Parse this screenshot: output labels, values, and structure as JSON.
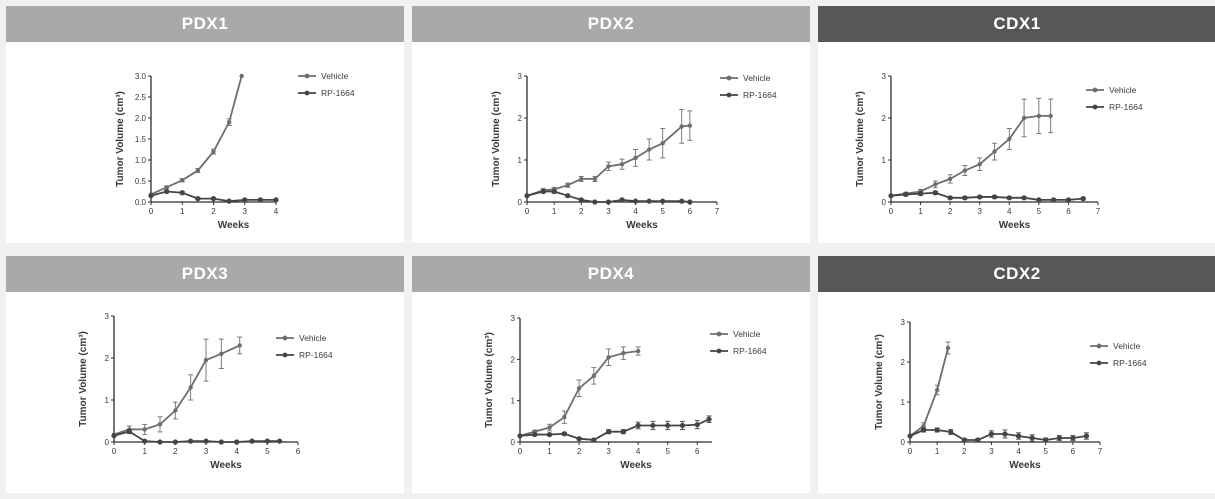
{
  "colors": {
    "header_pdx": "#a9a9a9",
    "header_cdx": "#575757",
    "vehicle_line": "#6e6e6e",
    "rp1664_line": "#454545",
    "axis": "#2e2e2e"
  },
  "chart_data": [
    {
      "type": "line",
      "title": "PDX1",
      "header_style": "pdx",
      "xlabel": "Weeks",
      "ylabel": "Tumor Volume (cm³)",
      "xlim": [
        0,
        4
      ],
      "ylim": [
        0,
        3
      ],
      "xticks": [
        "0",
        "1",
        "2",
        "3",
        "4"
      ],
      "yticks": [
        "0.0",
        "0.5",
        "1.0",
        "1.5",
        "2.0",
        "2.5",
        "3.0"
      ],
      "series": [
        {
          "name": "Vehicle",
          "x": [
            0,
            0.5,
            1,
            1.5,
            2,
            2.5,
            2.9
          ],
          "y": [
            0.18,
            0.35,
            0.52,
            0.75,
            1.2,
            1.9,
            3.0
          ],
          "err": [
            0,
            0.03,
            0.04,
            0.05,
            0.06,
            0.08,
            0
          ]
        },
        {
          "name": "RP-1664",
          "x": [
            0,
            0.5,
            1,
            1.5,
            2,
            2.5,
            3,
            3.5,
            4
          ],
          "y": [
            0.15,
            0.25,
            0.22,
            0.08,
            0.08,
            0.02,
            0.05,
            0.05,
            0.05
          ],
          "err": [
            0,
            0.03,
            0.03,
            0.02,
            0.02,
            0.01,
            0.02,
            0.02,
            0.02
          ]
        }
      ]
    },
    {
      "type": "line",
      "title": "PDX2",
      "header_style": "pdx",
      "xlabel": "Weeks",
      "ylabel": "Tumor Volume (cm³)",
      "xlim": [
        0,
        7
      ],
      "ylim": [
        0,
        3
      ],
      "xticks": [
        "0",
        "1",
        "2",
        "3",
        "4",
        "5",
        "6",
        "7"
      ],
      "yticks": [
        "0",
        "1",
        "2",
        "3"
      ],
      "series": [
        {
          "name": "Vehicle",
          "x": [
            0,
            0.6,
            1,
            1.5,
            2,
            2.5,
            3,
            3.5,
            4,
            4.5,
            5,
            5.7,
            6
          ],
          "y": [
            0.15,
            0.28,
            0.3,
            0.4,
            0.55,
            0.55,
            0.85,
            0.9,
            1.05,
            1.25,
            1.4,
            1.8,
            1.82
          ],
          "err": [
            0,
            0.04,
            0.05,
            0.05,
            0.06,
            0.06,
            0.1,
            0.12,
            0.2,
            0.25,
            0.35,
            0.4,
            0.35
          ]
        },
        {
          "name": "RP-1664",
          "x": [
            0,
            0.6,
            1,
            1.5,
            2,
            2.5,
            3,
            3.5,
            4,
            4.5,
            5,
            5.7,
            6
          ],
          "y": [
            0.15,
            0.25,
            0.25,
            0.15,
            0.05,
            0.0,
            0.0,
            0.05,
            0.02,
            0.02,
            0.02,
            0.02,
            0.0
          ],
          "err": [
            0,
            0.03,
            0.04,
            0.03,
            0.02,
            0.01,
            0.01,
            0.02,
            0.01,
            0.01,
            0.01,
            0.01,
            0.01
          ]
        }
      ]
    },
    {
      "type": "line",
      "title": "CDX1",
      "header_style": "cdx",
      "xlabel": "Weeks",
      "ylabel": "Tumor Volume (cm³)",
      "xlim": [
        0,
        7
      ],
      "ylim": [
        0,
        3
      ],
      "xticks": [
        "0",
        "1",
        "2",
        "3",
        "4",
        "5",
        "6",
        "7"
      ],
      "yticks": [
        "0",
        "1",
        "2",
        "3"
      ],
      "series": [
        {
          "name": "Vehicle",
          "x": [
            0,
            0.5,
            1,
            1.5,
            2,
            2.5,
            3,
            3.5,
            4,
            4.5,
            5,
            5.4
          ],
          "y": [
            0.15,
            0.2,
            0.25,
            0.42,
            0.55,
            0.75,
            0.9,
            1.2,
            1.5,
            2.0,
            2.05,
            2.05
          ],
          "err": [
            0,
            0.03,
            0.05,
            0.08,
            0.1,
            0.12,
            0.15,
            0.2,
            0.25,
            0.45,
            0.42,
            0.4
          ]
        },
        {
          "name": "RP-1664",
          "x": [
            0,
            0.5,
            1,
            1.5,
            2,
            2.5,
            3,
            3.5,
            4,
            4.5,
            5,
            5.5,
            6,
            6.5
          ],
          "y": [
            0.15,
            0.18,
            0.2,
            0.22,
            0.1,
            0.1,
            0.12,
            0.12,
            0.1,
            0.1,
            0.05,
            0.05,
            0.05,
            0.08
          ],
          "err": [
            0,
            0.03,
            0.04,
            0.04,
            0.03,
            0.03,
            0.03,
            0.03,
            0.03,
            0.03,
            0.02,
            0.02,
            0.02,
            0.03
          ]
        }
      ]
    },
    {
      "type": "line",
      "title": "PDX3",
      "header_style": "pdx",
      "xlabel": "Weeks",
      "ylabel": "Tumor Volume (cm³)",
      "xlim": [
        0,
        6
      ],
      "ylim": [
        0,
        3
      ],
      "xticks": [
        "0",
        "1",
        "2",
        "3",
        "4",
        "5",
        "6"
      ],
      "yticks": [
        "0",
        "1",
        "2",
        "3"
      ],
      "series": [
        {
          "name": "Vehicle",
          "x": [
            0,
            0.5,
            1,
            1.5,
            2,
            2.5,
            3,
            3.5,
            4.1
          ],
          "y": [
            0.18,
            0.3,
            0.3,
            0.42,
            0.75,
            1.3,
            1.95,
            2.1,
            2.3
          ],
          "err": [
            0,
            0.08,
            0.12,
            0.18,
            0.2,
            0.3,
            0.5,
            0.35,
            0.2
          ]
        },
        {
          "name": "RP-1664",
          "x": [
            0,
            0.5,
            1,
            1.5,
            2,
            2.5,
            3,
            3.5,
            4,
            4.5,
            5,
            5.4
          ],
          "y": [
            0.15,
            0.25,
            0.02,
            0.0,
            0.0,
            0.02,
            0.02,
            0.0,
            0.0,
            0.02,
            0.02,
            0.02
          ],
          "err": [
            0,
            0.05,
            0.02,
            0.01,
            0.01,
            0.02,
            0.02,
            0.01,
            0.01,
            0.02,
            0.02,
            0.02
          ]
        }
      ]
    },
    {
      "type": "line",
      "title": "PDX4",
      "header_style": "pdx",
      "xlabel": "Weeks",
      "ylabel": "Tumor Volume (cm³)",
      "xlim": [
        0,
        6.5
      ],
      "ylim": [
        0,
        3
      ],
      "xticks": [
        "0",
        "1",
        "2",
        "3",
        "4",
        "5",
        "6"
      ],
      "yticks": [
        "0",
        "1",
        "2",
        "3"
      ],
      "series": [
        {
          "name": "Vehicle",
          "x": [
            0,
            0.5,
            1,
            1.5,
            2,
            2.5,
            3,
            3.5,
            4
          ],
          "y": [
            0.15,
            0.25,
            0.35,
            0.6,
            1.3,
            1.6,
            2.05,
            2.15,
            2.2
          ],
          "err": [
            0,
            0.04,
            0.08,
            0.15,
            0.2,
            0.2,
            0.2,
            0.15,
            0.1
          ]
        },
        {
          "name": "RP-1664",
          "x": [
            0,
            0.5,
            1,
            1.5,
            2,
            2.5,
            3,
            3.5,
            4,
            4.5,
            5,
            5.5,
            6,
            6.4
          ],
          "y": [
            0.15,
            0.18,
            0.18,
            0.2,
            0.08,
            0.05,
            0.25,
            0.25,
            0.4,
            0.4,
            0.4,
            0.4,
            0.42,
            0.55
          ],
          "err": [
            0,
            0.03,
            0.03,
            0.03,
            0.03,
            0.03,
            0.05,
            0.05,
            0.08,
            0.1,
            0.1,
            0.1,
            0.1,
            0.08
          ]
        }
      ]
    },
    {
      "type": "line",
      "title": "CDX2",
      "header_style": "cdx",
      "xlabel": "Weeks",
      "ylabel": "Tumor Volume (cm³)",
      "xlim": [
        0,
        7
      ],
      "ylim": [
        0,
        3
      ],
      "xticks": [
        "0",
        "1",
        "2",
        "3",
        "4",
        "5",
        "6",
        "7"
      ],
      "yticks": [
        "0",
        "1",
        "2",
        "3"
      ],
      "series": [
        {
          "name": "Vehicle",
          "x": [
            0,
            0.5,
            1,
            1.4
          ],
          "y": [
            0.15,
            0.4,
            1.3,
            2.35
          ],
          "err": [
            0,
            0.08,
            0.12,
            0.15
          ]
        },
        {
          "name": "RP-1664",
          "x": [
            0,
            0.5,
            1,
            1.5,
            2,
            2.5,
            3,
            3.5,
            4,
            4.5,
            5,
            5.5,
            6,
            6.5
          ],
          "y": [
            0.15,
            0.3,
            0.3,
            0.25,
            0.05,
            0.05,
            0.2,
            0.2,
            0.15,
            0.1,
            0.05,
            0.1,
            0.1,
            0.15
          ],
          "err": [
            0,
            0.05,
            0.05,
            0.06,
            0.04,
            0.04,
            0.08,
            0.1,
            0.08,
            0.08,
            0.05,
            0.06,
            0.06,
            0.08
          ]
        }
      ]
    }
  ]
}
